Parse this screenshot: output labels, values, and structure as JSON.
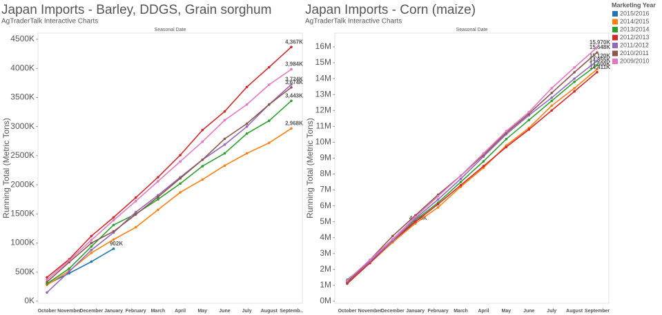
{
  "legend_title": "Marketing Year",
  "chart_data": [
    {
      "type": "line",
      "title": "Japan Imports - Barley, DDGS, Grain sorghum",
      "subtitle": "AgTraderTalk Interactive Charts",
      "x_label": "Seasonal Date",
      "y_label": "Running Total (Metric Tons)",
      "categories": [
        "October",
        "November",
        "December",
        "January",
        "February",
        "March",
        "April",
        "May",
        "June",
        "July",
        "August",
        "Septemb.."
      ],
      "ylim": [
        0,
        4500000
      ],
      "yticks": [
        {
          "value": 0,
          "label": "0K"
        },
        {
          "value": 500000,
          "label": "500K"
        },
        {
          "value": 1000000,
          "label": "1000K"
        },
        {
          "value": 1500000,
          "label": "1500K"
        },
        {
          "value": 2000000,
          "label": "2000K"
        },
        {
          "value": 2500000,
          "label": "2500K"
        },
        {
          "value": 3000000,
          "label": "3000K"
        },
        {
          "value": 3500000,
          "label": "3500K"
        },
        {
          "value": 4000000,
          "label": "4000K"
        },
        {
          "value": 4500000,
          "label": "4500K"
        }
      ],
      "series": [
        {
          "name": "2015/2016",
          "color": "#1f77b4",
          "values": [
            290000,
            480000,
            680000,
            902000,
            null,
            null,
            null,
            null,
            null,
            null,
            null,
            null
          ],
          "value_labels": [
            null,
            null,
            null,
            "902K",
            null,
            null,
            null,
            null,
            null,
            null,
            null,
            null
          ]
        },
        {
          "name": "2014/2015",
          "color": "#ff7f0e",
          "values": [
            280000,
            520000,
            830000,
            1060000,
            1270000,
            1570000,
            1870000,
            2090000,
            2330000,
            2540000,
            2720000,
            2968000
          ],
          "value_labels": [
            null,
            null,
            null,
            null,
            null,
            null,
            null,
            null,
            null,
            null,
            null,
            "2,968K"
          ]
        },
        {
          "name": "2013/2014",
          "color": "#2ca02c",
          "values": [
            300000,
            560000,
            940000,
            1310000,
            1500000,
            1750000,
            2020000,
            2320000,
            2540000,
            2880000,
            3100000,
            3443000
          ],
          "value_labels": [
            null,
            null,
            null,
            null,
            null,
            null,
            null,
            null,
            null,
            null,
            null,
            "3,443K"
          ]
        },
        {
          "name": "2012/2013",
          "color": "#d62728",
          "values": [
            410000,
            720000,
            1120000,
            1440000,
            1780000,
            2130000,
            2510000,
            2940000,
            3260000,
            3680000,
            4020000,
            4367000
          ],
          "value_labels": [
            null,
            null,
            null,
            null,
            null,
            null,
            null,
            null,
            null,
            null,
            null,
            "4,367K"
          ]
        },
        {
          "name": "2011/2012",
          "color": "#9467bd",
          "values": [
            150000,
            510000,
            880000,
            1180000,
            1530000,
            1820000,
            2130000,
            2430000,
            2690000,
            3000000,
            3380000,
            3724000
          ],
          "value_labels": [
            null,
            null,
            null,
            null,
            null,
            null,
            null,
            null,
            null,
            null,
            null,
            "3,724K"
          ]
        },
        {
          "name": "2010/2011",
          "color": "#8c564b",
          "values": [
            330000,
            670000,
            1000000,
            1200000,
            1490000,
            1790000,
            2110000,
            2430000,
            2790000,
            3050000,
            3380000,
            3674000
          ],
          "value_labels": [
            null,
            null,
            null,
            null,
            null,
            null,
            null,
            null,
            null,
            null,
            null,
            "3,674K"
          ]
        },
        {
          "name": "2009/2010",
          "color": "#e377c2",
          "values": [
            370000,
            700000,
            1050000,
            1390000,
            1720000,
            2060000,
            2400000,
            2740000,
            3110000,
            3380000,
            3720000,
            3984000
          ],
          "value_labels": [
            null,
            null,
            null,
            null,
            null,
            null,
            null,
            null,
            null,
            null,
            null,
            "3,984K"
          ]
        }
      ]
    },
    {
      "type": "line",
      "title": "Japan Imports - Corn (maize)",
      "subtitle": "AgTraderTalk Interactive Charts",
      "x_label": "Seasonal Date",
      "y_label": "Running Total (Metric Tons)",
      "categories": [
        "October",
        "November",
        "December",
        "January",
        "February",
        "March",
        "April",
        "May",
        "June",
        "July",
        "August",
        "September"
      ],
      "ylim": [
        0,
        16000000
      ],
      "yticks": [
        {
          "value": 0,
          "label": "0M"
        },
        {
          "value": 1000000,
          "label": "1M"
        },
        {
          "value": 2000000,
          "label": "2M"
        },
        {
          "value": 3000000,
          "label": "3M"
        },
        {
          "value": 4000000,
          "label": "4M"
        },
        {
          "value": 5000000,
          "label": "5M"
        },
        {
          "value": 6000000,
          "label": "6M"
        },
        {
          "value": 7000000,
          "label": "7M"
        },
        {
          "value": 8000000,
          "label": "8M"
        },
        {
          "value": 9000000,
          "label": "9M"
        },
        {
          "value": 10000000,
          "label": "10M"
        },
        {
          "value": 11000000,
          "label": "11M"
        },
        {
          "value": 12000000,
          "label": "12M"
        },
        {
          "value": 13000000,
          "label": "13M"
        },
        {
          "value": 14000000,
          "label": "14M"
        },
        {
          "value": 15000000,
          "label": "15M"
        },
        {
          "value": 16000000,
          "label": "16M"
        }
      ],
      "series": [
        {
          "name": "2015/2016",
          "color": "#1f77b4",
          "values": [
            1350000,
            2500000,
            3800000,
            4898000,
            null,
            null,
            null,
            null,
            null,
            null,
            null,
            null
          ],
          "value_labels": [
            null,
            null,
            null,
            "4,898K",
            null,
            null,
            null,
            null,
            null,
            null,
            null,
            null
          ]
        },
        {
          "name": "2014/2015",
          "color": "#ff7f0e",
          "values": [
            1200000,
            2400000,
            3700000,
            4900000,
            5900000,
            7200000,
            8400000,
            9800000,
            10900000,
            12300000,
            13400000,
            14600000
          ],
          "value_labels": [
            null,
            null,
            null,
            null,
            null,
            null,
            null,
            null,
            null,
            null,
            null,
            "14,600K"
          ]
        },
        {
          "name": "2013/2014",
          "color": "#2ca02c",
          "values": [
            1300000,
            2500000,
            3800000,
            5100000,
            6200000,
            7500000,
            8800000,
            10200000,
            11400000,
            12600000,
            13800000,
            14855000
          ],
          "value_labels": [
            null,
            null,
            null,
            null,
            null,
            null,
            null,
            null,
            null,
            null,
            null,
            "14,855K"
          ]
        },
        {
          "name": "2012/2013",
          "color": "#d62728",
          "values": [
            1100000,
            2400000,
            3800000,
            5000000,
            6100000,
            7300000,
            8500000,
            9700000,
            10800000,
            12000000,
            13200000,
            14411000
          ],
          "value_labels": [
            null,
            null,
            null,
            null,
            null,
            null,
            null,
            null,
            null,
            null,
            null,
            "14,411K"
          ]
        },
        {
          "name": "2011/2012",
          "color": "#9467bd",
          "values": [
            1200000,
            2500000,
            3800000,
            5200000,
            6400000,
            7700000,
            9100000,
            10500000,
            11700000,
            12800000,
            14000000,
            15120000
          ],
          "value_labels": [
            null,
            null,
            null,
            null,
            null,
            null,
            null,
            null,
            null,
            null,
            null,
            "15,120K"
          ]
        },
        {
          "name": "2010/2011",
          "color": "#8c564b",
          "values": [
            1200000,
            2600000,
            4100000,
            5400000,
            6700000,
            7900000,
            9200000,
            10600000,
            11800000,
            13100000,
            14400000,
            15648000
          ],
          "value_labels": [
            null,
            null,
            null,
            null,
            null,
            null,
            null,
            null,
            null,
            null,
            null,
            "15,648K"
          ]
        },
        {
          "name": "2009/2010",
          "color": "#e377c2",
          "values": [
            1300000,
            2600000,
            3900000,
            5300000,
            6600000,
            7900000,
            9300000,
            10700000,
            11900000,
            13400000,
            14700000,
            15970000
          ],
          "value_labels": [
            null,
            null,
            null,
            null,
            null,
            null,
            null,
            null,
            null,
            null,
            null,
            "15,970K"
          ]
        }
      ]
    }
  ]
}
